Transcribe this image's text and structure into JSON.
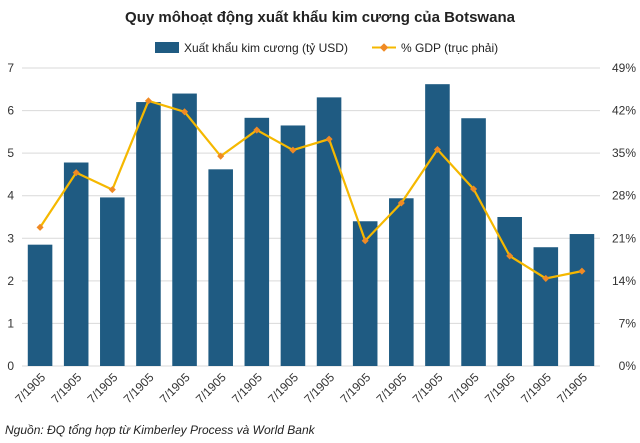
{
  "chart_data": {
    "type": "bar",
    "title": "Quy môhoạt động xuất khẩu kim cương của Botswana",
    "source": "Nguồn: ĐQ tổng hợp từ Kimberley Process và World Bank",
    "categories": [
      "7/1905",
      "7/1905",
      "7/1905",
      "7/1905",
      "7/1905",
      "7/1905",
      "7/1905",
      "7/1905",
      "7/1905",
      "7/1905",
      "7/1905",
      "7/1905",
      "7/1905",
      "7/1905",
      "7/1905",
      "7/1905"
    ],
    "series": [
      {
        "name": "Xuất khẩu kim cương (tỷ USD)",
        "type": "bar",
        "axis": "left",
        "color": "#1f5b82",
        "values": [
          2.85,
          4.78,
          3.96,
          6.2,
          6.4,
          4.62,
          5.83,
          5.65,
          6.31,
          3.4,
          3.94,
          6.62,
          5.82,
          3.5,
          2.79,
          3.1
        ]
      },
      {
        "name": "% GDP (trục phải)",
        "type": "line",
        "axis": "right",
        "color": "#f5b800",
        "marker_color": "#f08a24",
        "values": [
          22.8,
          31.8,
          29.0,
          43.6,
          41.8,
          34.5,
          38.8,
          35.5,
          37.3,
          20.6,
          26.8,
          35.6,
          29.1,
          18.1,
          14.4,
          15.6
        ]
      }
    ],
    "ylim": [
      0,
      7
    ],
    "yticks": [
      "0",
      "1",
      "2",
      "3",
      "4",
      "5",
      "6",
      "7"
    ],
    "y2lim": [
      0,
      49
    ],
    "y2ticks": [
      "0%",
      "7%",
      "14%",
      "21%",
      "28%",
      "35%",
      "42%",
      "49%"
    ],
    "grid": true,
    "legend": "top-center"
  }
}
